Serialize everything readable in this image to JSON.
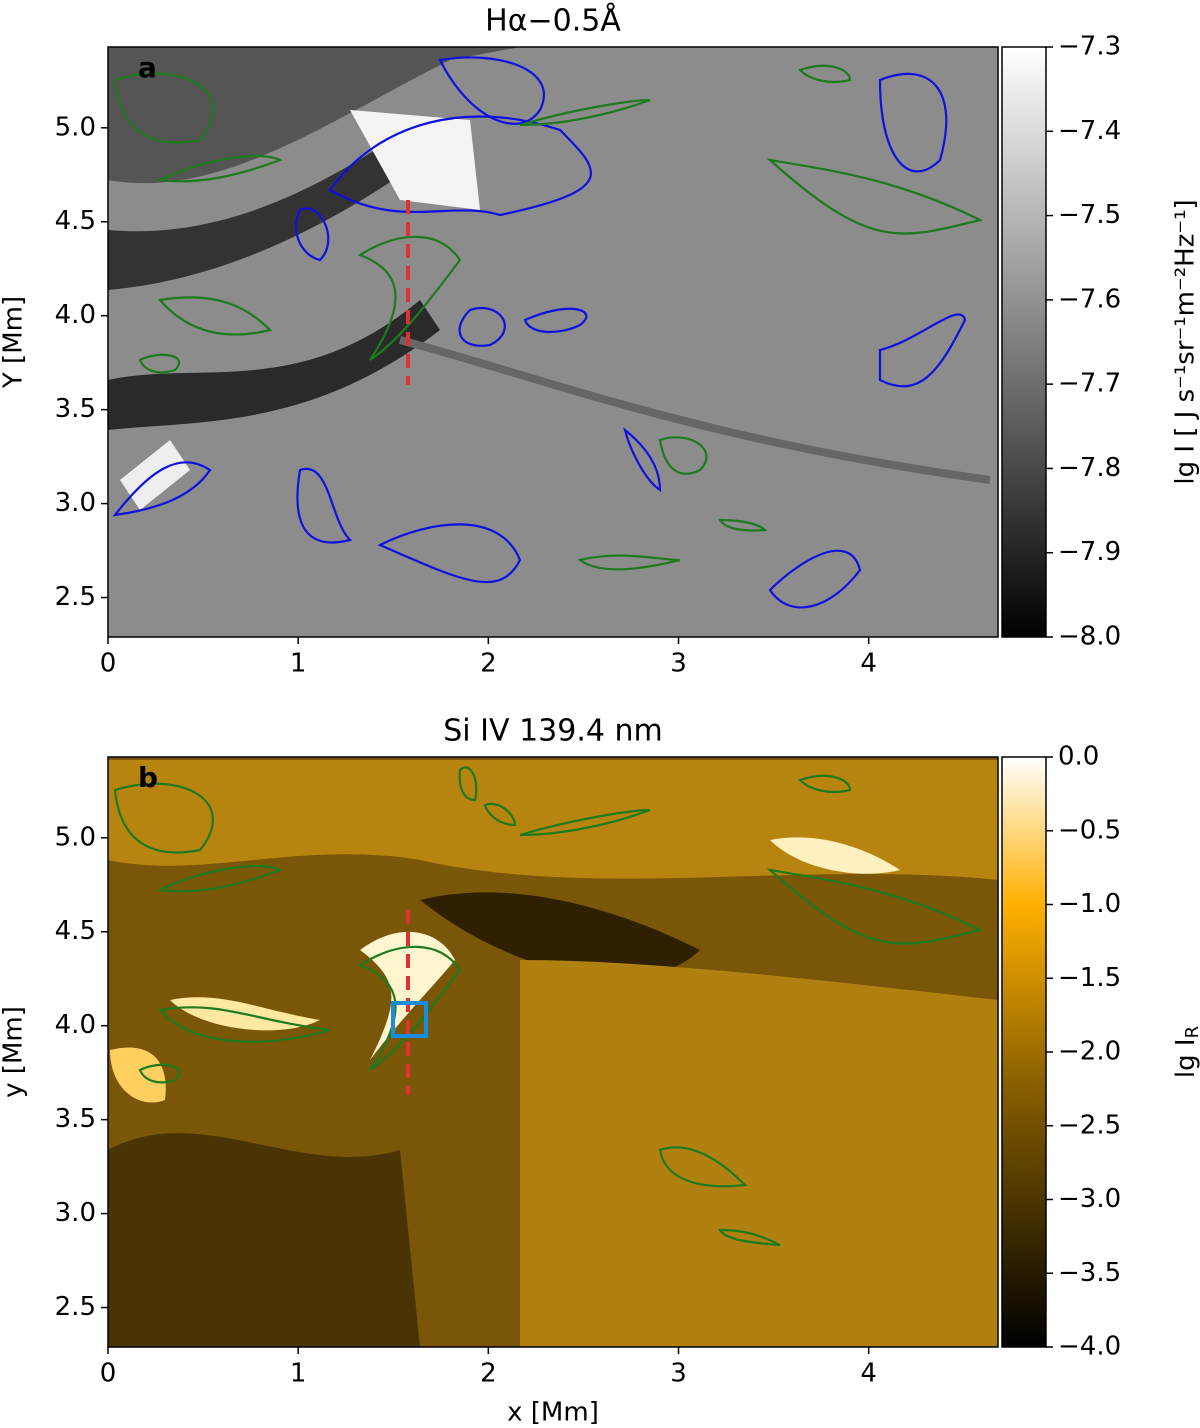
{
  "chart_data": [
    {
      "type": "image",
      "title": "Hα−0.5Å",
      "panel_label": "a",
      "ylabel": "Y [Mm]",
      "colormap": "gray",
      "xlim": [
        0,
        4.68
      ],
      "ylim": [
        2.29,
        5.43
      ],
      "xticks": [
        0,
        1,
        2,
        3,
        4
      ],
      "yticks": [
        2.5,
        {
          "value": 3,
          "label": "3.0"
        },
        3.5,
        {
          "value": 4,
          "label": "4.0"
        },
        4.5,
        {
          "value": 5,
          "label": "5.0"
        }
      ],
      "colorbar": {
        "label": "lg I [ J s⁻¹sr⁻¹m⁻²Hz⁻¹]",
        "lim": [
          -8,
          -7.3
        ],
        "ticks": [
          {
            "value": -8,
            "label": "−8.0"
          },
          {
            "value": -7.9,
            "label": "−7.9"
          },
          {
            "value": -7.8,
            "label": "−7.8"
          },
          {
            "value": -7.7,
            "label": "−7.7"
          },
          {
            "value": -7.6,
            "label": "−7.6"
          },
          {
            "value": -7.5,
            "label": "−7.5"
          },
          {
            "value": -7.4,
            "label": "−7.4"
          },
          {
            "value": -7.3,
            "label": "−7.3"
          }
        ]
      }
    },
    {
      "type": "image",
      "title": "Si IV 139.4 nm",
      "panel_label": "b",
      "ylabel": "y [Mm]",
      "xlabel": "x [Mm]",
      "colormap": "gold",
      "xlim": [
        0,
        4.68
      ],
      "ylim": [
        2.29,
        5.43
      ],
      "xticks": [
        0,
        1,
        2,
        3,
        4
      ],
      "yticks": [
        2.5,
        {
          "value": 3,
          "label": "3.0"
        },
        3.5,
        {
          "value": 4,
          "label": "4.0"
        },
        4.5,
        {
          "value": 5,
          "label": "5.0"
        }
      ],
      "colorbar": {
        "label": {
          "text": "lg I",
          "subscript": "R"
        },
        "lim": [
          -4,
          0
        ],
        "ticks": [
          {
            "value": -4,
            "label": "−4.0"
          },
          {
            "value": -3.5,
            "label": "−3.5"
          },
          {
            "value": -3,
            "label": "−3.0"
          },
          {
            "value": -2.5,
            "label": "−2.5"
          },
          {
            "value": -2,
            "label": "−2.0"
          },
          {
            "value": -1.5,
            "label": "−1.5"
          },
          {
            "value": -1,
            "label": "−1.0"
          },
          {
            "value": -0.5,
            "label": "−0.5"
          },
          {
            "value": 0,
            "label": "0.0"
          }
        ]
      }
    }
  ]
}
